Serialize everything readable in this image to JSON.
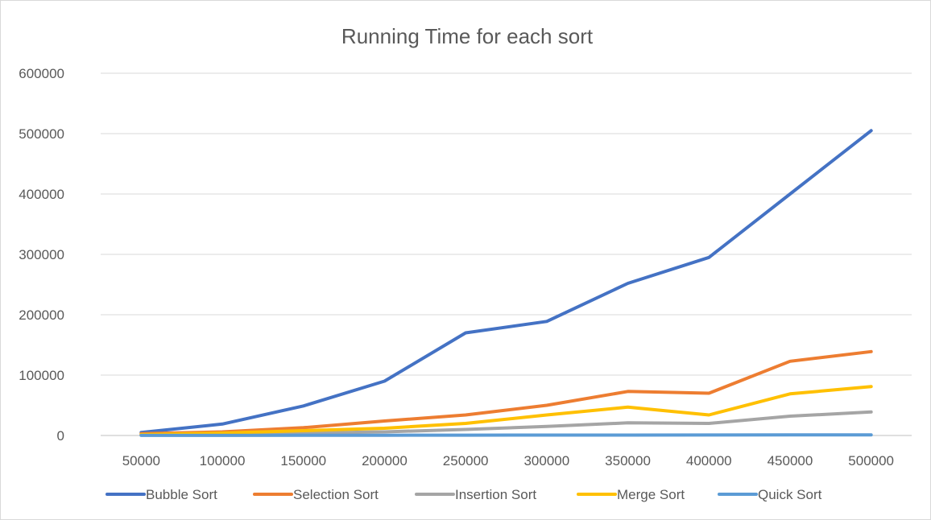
{
  "chart_data": {
    "type": "line",
    "title": "Running Time for each sort",
    "xlabel": "",
    "ylabel": "",
    "categories": [
      "50000",
      "100000",
      "150000",
      "200000",
      "250000",
      "300000",
      "350000",
      "400000",
      "450000",
      "500000"
    ],
    "ylim": [
      0,
      600000
    ],
    "yticks": [
      "0",
      "100000",
      "200000",
      "300000",
      "400000",
      "500000",
      "600000"
    ],
    "grid": true,
    "legend_position": "bottom",
    "series": [
      {
        "name": "Bubble Sort",
        "color": "#4472C4",
        "values": [
          5000,
          19000,
          49000,
          90000,
          170000,
          189000,
          252000,
          295000,
          400000,
          505000
        ]
      },
      {
        "name": "Selection Sort",
        "color": "#ED7D31",
        "values": [
          3000,
          6000,
          13000,
          24000,
          34000,
          50000,
          73000,
          70000,
          123000,
          139000
        ]
      },
      {
        "name": "Insertion Sort",
        "color": "#A5A5A5",
        "values": [
          1000,
          2000,
          4000,
          6000,
          10000,
          15000,
          21000,
          20000,
          32000,
          39000
        ]
      },
      {
        "name": "Merge Sort",
        "color": "#FFC000",
        "values": [
          1500,
          4000,
          8000,
          12000,
          20000,
          34000,
          47000,
          34000,
          69000,
          81000
        ]
      },
      {
        "name": "Quick Sort",
        "color": "#5B9BD5",
        "values": [
          100,
          200,
          300,
          400,
          500,
          600,
          700,
          800,
          900,
          1000
        ]
      }
    ]
  }
}
